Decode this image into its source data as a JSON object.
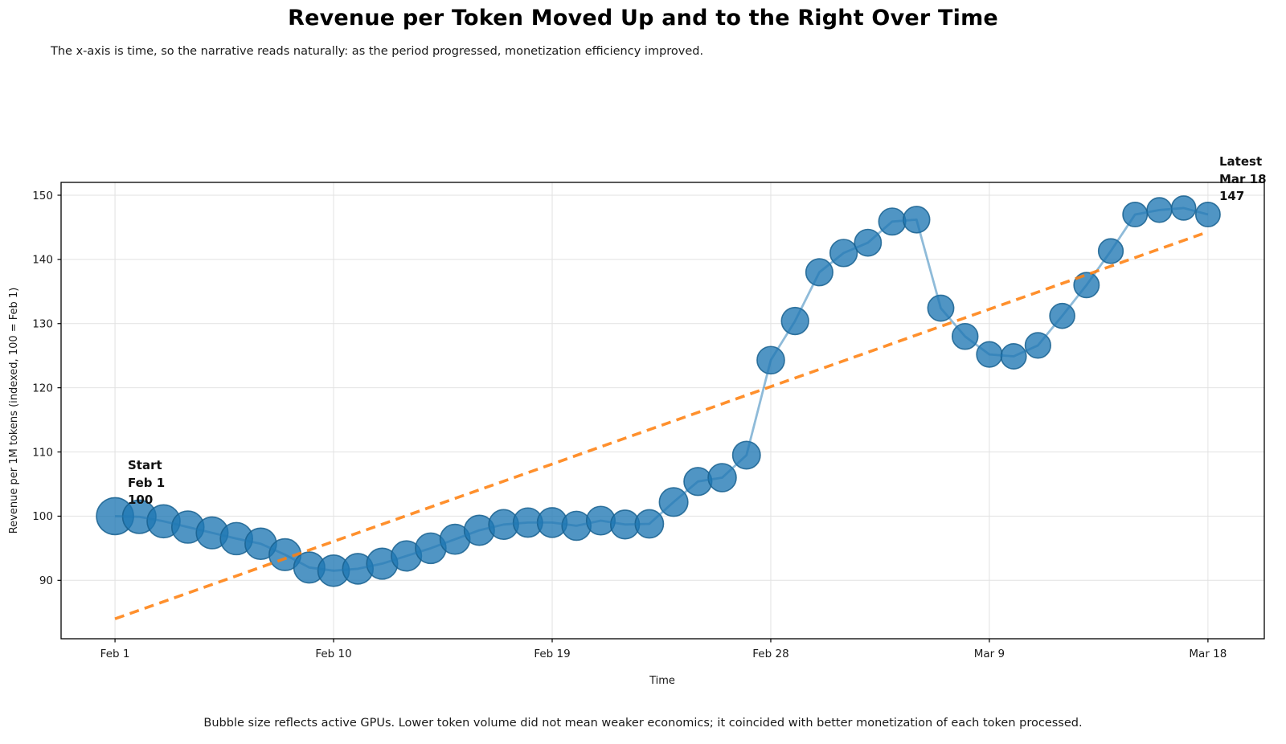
{
  "chart_data": {
    "type": "scatter",
    "title": "Revenue per Token Moved Up and to the Right Over Time",
    "subtitle": "The x-axis is time, so the narrative reads naturally: as the period progressed, monetization efficiency improved.",
    "caption": "Bubble size reflects active GPUs. Lower token volume did not mean weaker economics; it coincided with better monetization of each token processed.",
    "xlabel": "Time",
    "ylabel": "Revenue per 1M tokens (indexed, 100 = Feb 1)",
    "dates": [
      "Feb 1",
      "Feb 2",
      "Feb 3",
      "Feb 4",
      "Feb 5",
      "Feb 6",
      "Feb 7",
      "Feb 8",
      "Feb 9",
      "Feb 10",
      "Feb 11",
      "Feb 12",
      "Feb 13",
      "Feb 14",
      "Feb 15",
      "Feb 16",
      "Feb 17",
      "Feb 18",
      "Feb 19",
      "Feb 20",
      "Feb 21",
      "Feb 22",
      "Feb 23",
      "Feb 24",
      "Feb 25",
      "Feb 26",
      "Feb 27",
      "Feb 28",
      "Mar 1",
      "Mar 2",
      "Mar 3",
      "Mar 4",
      "Mar 5",
      "Mar 6",
      "Mar 7",
      "Mar 8",
      "Mar 9",
      "Mar 10",
      "Mar 11",
      "Mar 12",
      "Mar 13",
      "Mar 14",
      "Mar 15",
      "Mar 16",
      "Mar 17",
      "Mar 18"
    ],
    "values": [
      100.0,
      99.9,
      99.2,
      98.3,
      97.4,
      96.5,
      95.7,
      94.0,
      92.0,
      91.5,
      91.8,
      92.6,
      93.8,
      95.0,
      96.4,
      97.8,
      98.7,
      99.0,
      99.0,
      98.5,
      99.3,
      98.7,
      98.8,
      102.2,
      105.4,
      106.0,
      109.5,
      124.3,
      130.4,
      138.0,
      141.0,
      142.6,
      145.9,
      146.2,
      132.4,
      128.0,
      125.2,
      124.9,
      126.6,
      131.2,
      136.0,
      141.3,
      147.0,
      147.7,
      148.0,
      147.0
    ],
    "gpus": [
      530,
      430,
      420,
      400,
      390,
      400,
      380,
      390,
      370,
      380,
      360,
      370,
      350,
      360,
      345,
      350,
      340,
      330,
      340,
      325,
      315,
      320,
      310,
      315,
      300,
      305,
      295,
      290,
      285,
      280,
      285,
      275,
      280,
      270,
      260,
      255,
      250,
      245,
      250,
      240,
      245,
      235,
      230,
      235,
      225,
      230
    ],
    "trend": {
      "start_day": 0,
      "start_value": 84.0,
      "end_day": 45,
      "end_value": 144.3
    },
    "xticks": [
      {
        "day": 0,
        "label": "Feb 1"
      },
      {
        "day": 9,
        "label": "Feb 10"
      },
      {
        "day": 18,
        "label": "Feb 19"
      },
      {
        "day": 27,
        "label": "Feb 28"
      },
      {
        "day": 36,
        "label": "Mar 9"
      },
      {
        "day": 45,
        "label": "Mar 18"
      }
    ],
    "yticks": [
      90,
      100,
      110,
      120,
      130,
      140,
      150
    ],
    "ylim": [
      80.9,
      152.0
    ],
    "xlim_days": [
      -2.22,
      47.32
    ],
    "grid": true,
    "legend": "none",
    "colors": {
      "bubble_fill": "#1f77b4",
      "bubble_edge": "#17608f",
      "series_line": "#1f77b4",
      "trend_line": "#ff7f0e",
      "gridline": "#e2e2e2",
      "spine": "#000000"
    },
    "annotations": {
      "start": {
        "lines": [
          "Start",
          "Feb 1",
          "100"
        ]
      },
      "latest": {
        "lines": [
          "Latest",
          "Mar 18",
          "147"
        ]
      }
    }
  }
}
